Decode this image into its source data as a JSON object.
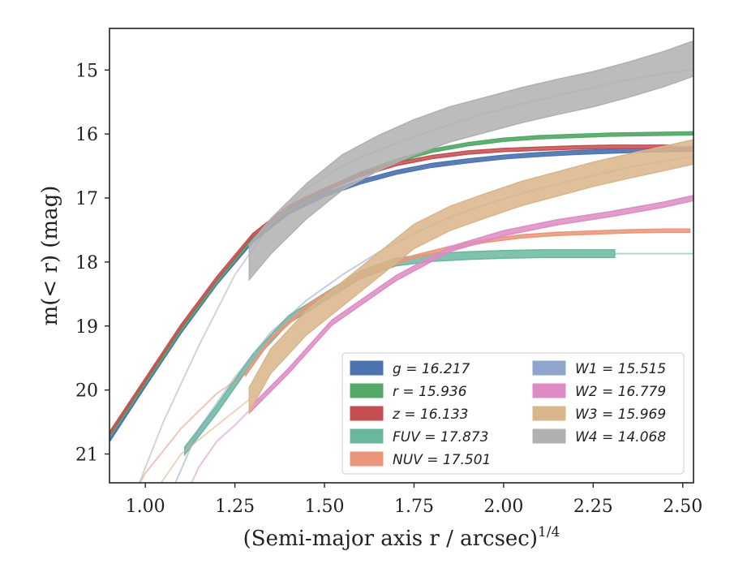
{
  "chart_data": {
    "type": "line",
    "xlabel": "(Semi-major axis r / arcsec)",
    "xlabel_exponent": "1/4",
    "ylabel": "m(< r) (mag)",
    "xlim": [
      0.9,
      2.53
    ],
    "ylim": [
      21.45,
      14.35
    ],
    "y_inverted": true,
    "x_ticks": [
      1.0,
      1.25,
      1.5,
      1.75,
      2.0,
      2.25,
      2.5
    ],
    "x_tick_labels": [
      "1.00",
      "1.25",
      "1.50",
      "1.75",
      "2.00",
      "2.25",
      "2.50"
    ],
    "y_ticks": [
      15,
      16,
      17,
      18,
      19,
      20,
      21
    ],
    "y_tick_labels": [
      "15",
      "16",
      "17",
      "18",
      "19",
      "20",
      "21"
    ],
    "grid": false,
    "legend_position": "lower-right",
    "series": [
      {
        "name": "g = 16.217",
        "legend_label": "g = 16.217",
        "color": "#4c72b0",
        "band": {
          "x": [
            0.9,
            1.0,
            1.1,
            1.2,
            1.3,
            1.4,
            1.5,
            1.6,
            1.7,
            1.8,
            1.9,
            2.0,
            2.1,
            2.2,
            2.3,
            2.4,
            2.53
          ],
          "y": [
            20.78,
            19.92,
            19.08,
            18.32,
            17.66,
            17.22,
            16.95,
            16.75,
            16.6,
            16.49,
            16.42,
            16.36,
            16.32,
            16.29,
            16.27,
            16.25,
            16.24
          ],
          "width": 0.06
        },
        "model": {
          "x": [
            0.9,
            1.0,
            1.1,
            1.2,
            1.3,
            1.4,
            1.5,
            1.6,
            1.7,
            1.8,
            1.9,
            2.0,
            2.1,
            2.2,
            2.3,
            2.4,
            2.53
          ],
          "y": [
            20.78,
            19.92,
            19.08,
            18.32,
            17.66,
            17.22,
            16.95,
            16.75,
            16.6,
            16.49,
            16.42,
            16.36,
            16.32,
            16.29,
            16.27,
            16.25,
            16.24
          ]
        }
      },
      {
        "name": "r = 15.936",
        "legend_label": "r = 15.936",
        "color": "#55a868",
        "band": {
          "x": [
            0.9,
            1.0,
            1.1,
            1.2,
            1.3,
            1.4,
            1.5,
            1.6,
            1.7,
            1.8,
            1.9,
            2.0,
            2.1,
            2.2,
            2.3,
            2.4,
            2.53
          ],
          "y": [
            20.72,
            19.88,
            19.05,
            18.3,
            17.62,
            17.18,
            16.88,
            16.62,
            16.42,
            16.26,
            16.16,
            16.09,
            16.05,
            16.03,
            16.01,
            16.0,
            15.99
          ],
          "width": 0.05
        },
        "model": {
          "x": [
            0.9,
            1.0,
            1.1,
            1.2,
            1.3,
            1.4,
            1.5,
            1.6,
            1.7,
            1.8,
            1.9,
            2.0,
            2.1,
            2.2,
            2.3,
            2.4,
            2.53
          ],
          "y": [
            20.72,
            19.88,
            19.05,
            18.3,
            17.62,
            17.18,
            16.88,
            16.62,
            16.42,
            16.26,
            16.16,
            16.09,
            16.05,
            16.03,
            16.01,
            16.0,
            15.99
          ]
        }
      },
      {
        "name": "z = 16.133",
        "legend_label": "z = 16.133",
        "color": "#c44e52",
        "band": {
          "x": [
            0.9,
            1.0,
            1.1,
            1.2,
            1.3,
            1.4,
            1.5,
            1.6,
            1.7,
            1.8,
            1.9,
            2.0,
            2.1,
            2.2,
            2.3,
            2.47
          ],
          "y": [
            20.68,
            19.84,
            19.0,
            18.25,
            17.58,
            17.14,
            16.87,
            16.64,
            16.47,
            16.36,
            16.29,
            16.25,
            16.23,
            16.21,
            16.2,
            16.2
          ],
          "width": 0.05
        },
        "model": {
          "x": [
            2.47,
            2.53
          ],
          "y": [
            16.2,
            16.2
          ]
        }
      },
      {
        "name": "FUV = 17.873",
        "legend_label": "FUV = 17.873",
        "color": "#6ab7a0",
        "band": {
          "x": [
            1.11,
            1.2,
            1.3,
            1.4,
            1.5,
            1.6,
            1.7,
            1.8,
            1.9,
            2.0,
            2.1,
            2.2,
            2.31
          ],
          "y": [
            20.95,
            20.3,
            19.5,
            18.9,
            18.55,
            18.2,
            18.0,
            17.93,
            17.9,
            17.88,
            17.87,
            17.87,
            17.87
          ],
          "width": 0.12
        },
        "model": {
          "x": [
            2.31,
            2.4,
            2.53
          ],
          "y": [
            17.87,
            17.87,
            17.87
          ]
        }
      },
      {
        "name": "NUV = 17.501",
        "legend_label": "NUV = 17.501",
        "color": "#e9967a",
        "band": {
          "x": [
            1.28,
            1.35,
            1.45,
            1.55,
            1.65,
            1.75,
            1.85,
            1.95,
            2.05,
            2.15,
            2.25,
            2.35,
            2.45,
            2.52
          ],
          "y": [
            19.75,
            19.2,
            18.7,
            18.35,
            18.1,
            17.92,
            17.78,
            17.67,
            17.6,
            17.56,
            17.54,
            17.52,
            17.51,
            17.51
          ],
          "width": 0.05
        },
        "model": {
          "x": [
            0.95,
            1.0,
            1.1,
            1.2,
            1.28
          ],
          "y": [
            21.8,
            21.3,
            20.6,
            20.05,
            19.75
          ]
        }
      },
      {
        "name": "W1 = 15.515",
        "legend_label": "W1 = 15.515",
        "color": "#8fa5cc",
        "band": null,
        "model": {
          "x": [
            1.08,
            1.15,
            1.25,
            1.35,
            1.45,
            1.55,
            1.65,
            1.75,
            1.85,
            1.95,
            2.05,
            2.15,
            2.25,
            2.35,
            2.45,
            2.53
          ],
          "y": [
            21.5,
            20.6,
            19.8,
            19.1,
            18.6,
            18.2,
            17.85,
            17.55,
            17.3,
            17.1,
            16.93,
            16.78,
            16.65,
            16.52,
            16.42,
            16.35
          ]
        }
      },
      {
        "name": "W2 = 16.779",
        "legend_label": "W2 = 16.779",
        "color": "#dd8cc3",
        "band": {
          "x": [
            1.29,
            1.4,
            1.52,
            1.7,
            1.85,
            2.0,
            2.15,
            2.3,
            2.45,
            2.53
          ],
          "y": [
            20.32,
            19.7,
            18.95,
            18.25,
            17.8,
            17.55,
            17.38,
            17.25,
            17.1,
            17.0
          ],
          "width": 0.08
        },
        "model": {
          "x": [
            1.1,
            1.15,
            1.2,
            1.25,
            1.29
          ],
          "y": [
            21.8,
            21.2,
            20.8,
            20.55,
            20.32
          ]
        }
      },
      {
        "name": "W3 = 15.969",
        "legend_label": "W3 = 15.969",
        "color": "#d9b58a",
        "band": {
          "x": [
            1.29,
            1.35,
            1.45,
            1.55,
            1.65,
            1.75,
            1.85,
            1.95,
            2.05,
            2.15,
            2.25,
            2.35,
            2.45,
            2.53
          ],
          "y": [
            20.15,
            19.55,
            18.95,
            18.5,
            18.05,
            17.6,
            17.32,
            17.12,
            16.93,
            16.78,
            16.63,
            16.5,
            16.38,
            16.28
          ],
          "width": 0.38
        },
        "model": {
          "x": [
            1.0,
            1.1,
            1.2,
            1.29
          ],
          "y": [
            21.8,
            21.0,
            20.55,
            20.15
          ]
        }
      },
      {
        "name": "W4 = 14.068",
        "legend_label": "W4 = 14.068",
        "color": "#b0b0b0",
        "band": {
          "x": [
            1.29,
            1.35,
            1.45,
            1.55,
            1.65,
            1.75,
            1.85,
            1.95,
            2.05,
            2.15,
            2.25,
            2.35,
            2.45,
            2.53
          ],
          "y": [
            18.0,
            17.6,
            17.05,
            16.6,
            16.3,
            16.05,
            15.85,
            15.7,
            15.55,
            15.42,
            15.3,
            15.15,
            14.98,
            14.82
          ],
          "width": 0.55
        },
        "model": {
          "x": [
            0.98,
            1.05,
            1.15,
            1.25,
            1.35,
            1.45,
            1.55,
            1.65,
            1.75,
            1.85,
            1.95,
            2.05,
            2.15,
            2.25,
            2.35,
            2.45,
            2.53
          ],
          "y": [
            21.5,
            20.5,
            19.3,
            18.2,
            17.4,
            16.85,
            16.5,
            16.25,
            16.05,
            15.85,
            15.68,
            15.53,
            15.4,
            15.27,
            15.15,
            15.05,
            15.0
          ]
        }
      }
    ]
  }
}
